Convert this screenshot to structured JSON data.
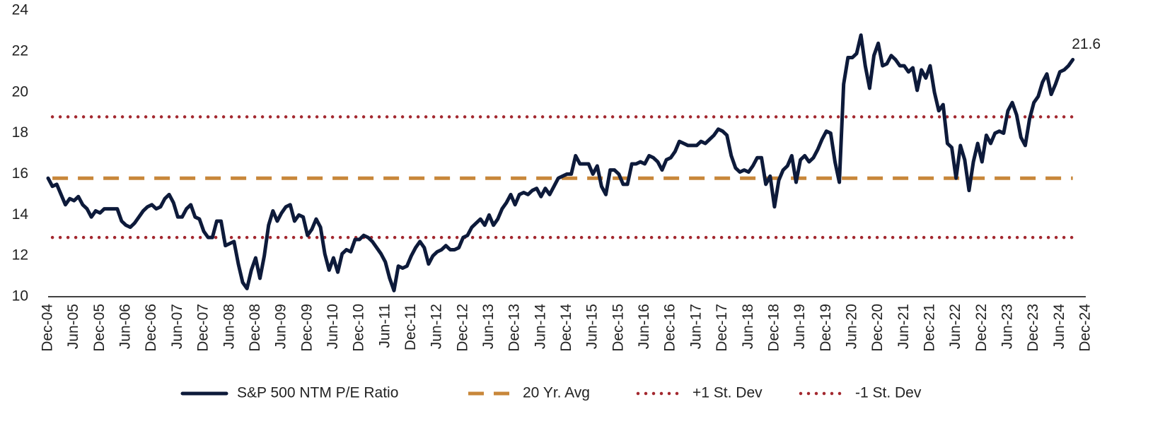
{
  "chart_data": {
    "type": "line",
    "categories": [
      "Dec-04",
      null,
      null,
      null,
      null,
      null,
      "Jun-05",
      null,
      null,
      null,
      null,
      null,
      "Dec-05",
      null,
      null,
      null,
      null,
      null,
      "Jun-06",
      null,
      null,
      null,
      null,
      null,
      "Dec-06",
      null,
      null,
      null,
      null,
      null,
      "Jun-07",
      null,
      null,
      null,
      null,
      null,
      "Dec-07",
      null,
      null,
      null,
      null,
      null,
      "Jun-08",
      null,
      null,
      null,
      null,
      null,
      "Dec-08",
      null,
      null,
      null,
      null,
      null,
      "Jun-09",
      null,
      null,
      null,
      null,
      null,
      "Dec-09",
      null,
      null,
      null,
      null,
      null,
      "Jun-10",
      null,
      null,
      null,
      null,
      null,
      "Dec-10",
      null,
      null,
      null,
      null,
      null,
      "Jun-11",
      null,
      null,
      null,
      null,
      null,
      "Dec-11",
      null,
      null,
      null,
      null,
      null,
      "Jun-12",
      null,
      null,
      null,
      null,
      null,
      "Dec-12",
      null,
      null,
      null,
      null,
      null,
      "Jun-13",
      null,
      null,
      null,
      null,
      null,
      "Dec-13",
      null,
      null,
      null,
      null,
      null,
      "Jun-14",
      null,
      null,
      null,
      null,
      null,
      "Dec-14",
      null,
      null,
      null,
      null,
      null,
      "Jun-15",
      null,
      null,
      null,
      null,
      null,
      "Dec-15",
      null,
      null,
      null,
      null,
      null,
      "Jun-16",
      null,
      null,
      null,
      null,
      null,
      "Dec-16",
      null,
      null,
      null,
      null,
      null,
      "Jun-17",
      null,
      null,
      null,
      null,
      null,
      "Dec-17",
      null,
      null,
      null,
      null,
      null,
      "Jun-18",
      null,
      null,
      null,
      null,
      null,
      "Dec-18",
      null,
      null,
      null,
      null,
      null,
      "Jun-19",
      null,
      null,
      null,
      null,
      null,
      "Dec-19",
      null,
      null,
      null,
      null,
      null,
      "Jun-20",
      null,
      null,
      null,
      null,
      null,
      "Dec-20",
      null,
      null,
      null,
      null,
      null,
      "Jun-21",
      null,
      null,
      null,
      null,
      null,
      "Dec-21",
      null,
      null,
      null,
      null,
      null,
      "Jun-22",
      null,
      null,
      null,
      null,
      null,
      "Dec-22",
      null,
      null,
      null,
      null,
      null,
      "Jun-23",
      null,
      null,
      null,
      null,
      null,
      "Dec-23",
      null,
      null,
      null,
      null,
      null,
      "Jun-24",
      null,
      null,
      null,
      null,
      null,
      "Dec-24"
    ],
    "series": [
      {
        "name": "S&P 500 NTM P/E Ratio",
        "color": "#0d1a3a",
        "values": [
          15.8,
          15.4,
          15.5,
          15.0,
          14.5,
          14.8,
          14.7,
          14.9,
          14.5,
          14.3,
          13.9,
          14.2,
          14.1,
          14.3,
          14.3,
          14.3,
          14.3,
          13.7,
          13.5,
          13.4,
          13.6,
          13.9,
          14.2,
          14.4,
          14.5,
          14.3,
          14.4,
          14.8,
          15.0,
          14.6,
          13.9,
          13.9,
          14.3,
          14.5,
          13.9,
          13.8,
          13.2,
          12.9,
          12.9,
          13.7,
          13.7,
          12.5,
          12.6,
          12.7,
          11.6,
          10.7,
          10.4,
          11.3,
          11.9,
          10.9,
          12.0,
          13.5,
          14.2,
          13.7,
          14.1,
          14.4,
          14.5,
          13.7,
          14.0,
          13.9,
          13.0,
          13.3,
          13.8,
          13.4,
          12.1,
          11.3,
          11.9,
          11.2,
          12.1,
          12.3,
          12.2,
          12.8,
          12.8,
          13.0,
          12.9,
          12.7,
          12.4,
          12.1,
          11.7,
          10.9,
          10.3,
          11.5,
          11.4,
          11.5,
          12.0,
          12.4,
          12.7,
          12.4,
          11.6,
          12.0,
          12.2,
          12.3,
          12.5,
          12.3,
          12.3,
          12.4,
          12.9,
          13.0,
          13.4,
          13.6,
          13.8,
          13.5,
          14.0,
          13.5,
          13.8,
          14.3,
          14.6,
          15.0,
          14.5,
          15.0,
          15.1,
          15.0,
          15.2,
          15.3,
          14.9,
          15.3,
          15.0,
          15.4,
          15.8,
          15.9,
          16.0,
          16.0,
          16.9,
          16.5,
          16.5,
          16.5,
          16.0,
          16.4,
          15.4,
          15.0,
          16.2,
          16.2,
          16.0,
          15.5,
          15.5,
          16.5,
          16.5,
          16.6,
          16.5,
          16.9,
          16.8,
          16.6,
          16.2,
          16.7,
          16.8,
          17.1,
          17.6,
          17.5,
          17.4,
          17.4,
          17.4,
          17.6,
          17.5,
          17.7,
          17.9,
          18.2,
          18.1,
          17.9,
          16.9,
          16.3,
          16.1,
          16.2,
          16.1,
          16.4,
          16.8,
          16.8,
          15.5,
          15.9,
          14.4,
          15.7,
          16.2,
          16.4,
          16.9,
          15.6,
          16.7,
          16.9,
          16.6,
          16.8,
          17.2,
          17.7,
          18.1,
          18.0,
          16.6,
          15.6,
          20.4,
          21.7,
          21.7,
          21.9,
          22.8,
          21.3,
          20.2,
          21.8,
          22.4,
          21.3,
          21.4,
          21.8,
          21.6,
          21.3,
          21.3,
          21.0,
          21.2,
          20.1,
          21.1,
          20.7,
          21.3,
          20.0,
          19.1,
          19.4,
          17.5,
          17.3,
          15.8,
          17.4,
          16.7,
          15.2,
          16.6,
          17.5,
          16.6,
          17.9,
          17.5,
          18.0,
          18.1,
          18.0,
          19.1,
          19.5,
          18.9,
          17.8,
          17.4,
          18.7,
          19.5,
          19.8,
          20.5,
          20.9,
          19.9,
          20.4,
          21.0,
          21.1,
          21.3,
          21.6,
          null,
          null,
          null
        ]
      }
    ],
    "reference_lines": [
      {
        "name": "20 Yr. Avg",
        "color": "#c8873a",
        "style": "dashed",
        "value": 15.8
      },
      {
        "name": "+1 St. Dev",
        "color": "#a3282f",
        "style": "dotted",
        "value": 18.8
      },
      {
        "name": "-1 St. Dev",
        "color": "#a3282f",
        "style": "dotted",
        "value": 12.9
      }
    ],
    "annotations": [
      {
        "label": "21.6",
        "value": 21.6
      }
    ],
    "ylim": [
      10,
      24
    ],
    "yticks": [
      10,
      12,
      14,
      16,
      18,
      20,
      22,
      24
    ],
    "grid": false,
    "legend": "bottom"
  }
}
